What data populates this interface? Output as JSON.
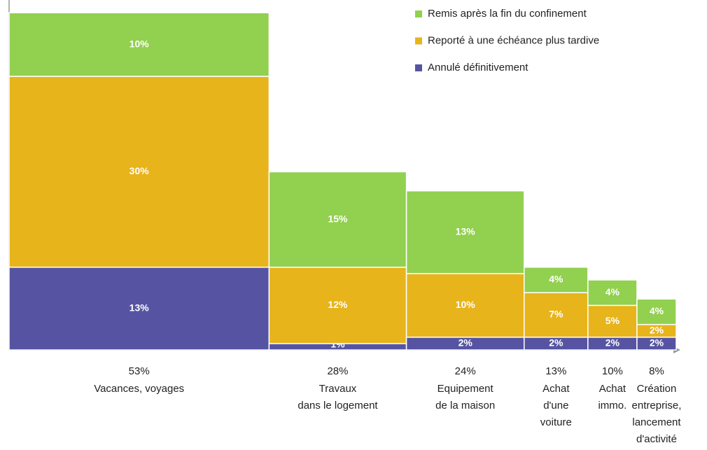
{
  "chart_data": {
    "type": "marimekko",
    "categories": [
      [
        "Vacances, voyages"
      ],
      [
        "Travaux",
        "dans le logement"
      ],
      [
        "Equipement",
        "de la maison"
      ],
      [
        "Achat",
        "d'une",
        "voiture"
      ],
      [
        "Achat",
        "immo."
      ],
      [
        "Création",
        "entreprise,",
        "lancement",
        "d'activité"
      ]
    ],
    "widths": {
      "values": [
        53,
        28,
        24,
        13,
        10,
        8
      ],
      "value_labels": [
        "53%",
        "28%",
        "24%",
        "13%",
        "10%",
        "8%"
      ]
    },
    "series": [
      {
        "name": "Annulé définitivement",
        "color": "#5654a2",
        "values": [
          13,
          1,
          2,
          2,
          2,
          2
        ],
        "value_labels": [
          "13%",
          "1%",
          "2%",
          "2%",
          "2%",
          "2%"
        ]
      },
      {
        "name": "Reporté à une échéance plus tardive",
        "color": "#e8b41b",
        "values": [
          30,
          12,
          10,
          7,
          5,
          2
        ],
        "value_labels": [
          "30%",
          "12%",
          "10%",
          "7%",
          "5%",
          "2%"
        ]
      },
      {
        "name": "Remis après la fin du confinement",
        "color": "#92d050",
        "values": [
          10,
          15,
          13,
          4,
          4,
          4
        ],
        "value_labels": [
          "10%",
          "15%",
          "13%",
          "4%",
          "4%",
          "4%"
        ]
      }
    ],
    "xlim": [
      0,
      136
    ],
    "ylim": [
      0,
      55
    ],
    "legend": "top-right"
  }
}
